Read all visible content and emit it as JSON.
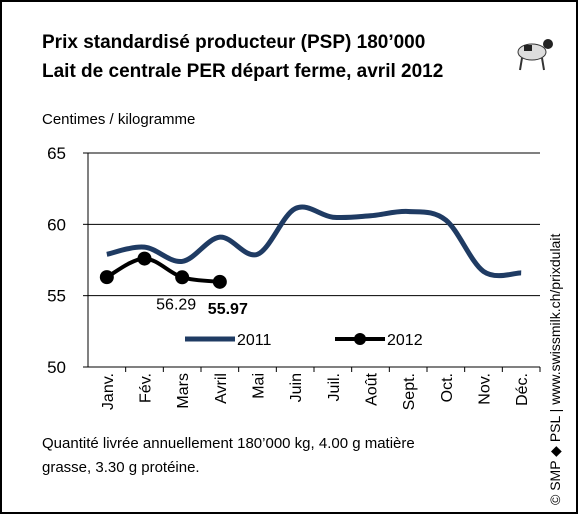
{
  "chart_data": {
    "type": "line",
    "title": "Prix standardisé producteur (PSP) 180’000",
    "subtitle": "Lait de centrale PER départ ferme, avril 2012",
    "y_label": "Centimes / kilogramme",
    "categories": [
      "Janv.",
      "Fév.",
      "Mars",
      "Avril",
      "Mai",
      "Juin",
      "Juil.",
      "Août",
      "Sept.",
      "Oct.",
      "Nov.",
      "Déc."
    ],
    "series": [
      {
        "name": "2011",
        "color": "#1f3b63",
        "marker": false,
        "values": [
          57.9,
          58.4,
          57.4,
          59.1,
          57.9,
          61.1,
          60.5,
          60.6,
          60.9,
          60.3,
          56.7,
          56.6
        ]
      },
      {
        "name": "2012",
        "color": "#000000",
        "marker": true,
        "values": [
          56.3,
          57.6,
          56.29,
          55.97,
          null,
          null,
          null,
          null,
          null,
          null,
          null,
          null
        ]
      }
    ],
    "ylim": [
      50,
      65
    ],
    "yticks": [
      50,
      55,
      60,
      65
    ],
    "grid": true,
    "legend": "lower center",
    "footnote": "Quantité livrée annuellement 180’000 kg, 4.00 g matière grasse, 3.30 g protéine.",
    "source": "© SMP ◆ PSL | www.swissmilk.ch/prixdulait"
  }
}
